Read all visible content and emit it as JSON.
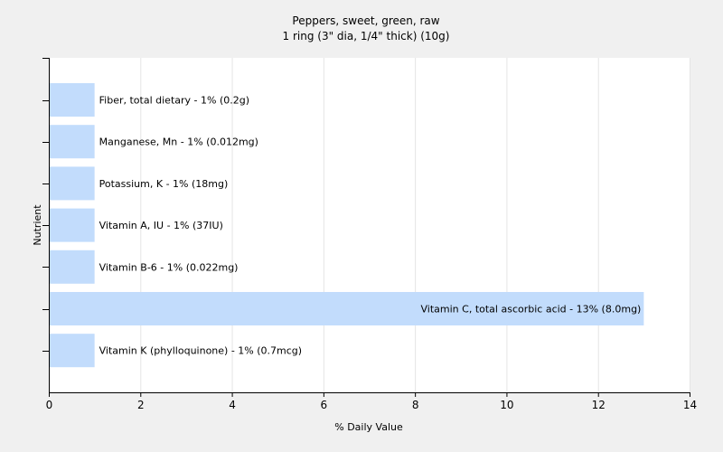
{
  "chart_data": {
    "type": "bar",
    "orientation": "horizontal",
    "title": "Peppers, sweet, green, raw",
    "subtitle": "1 ring (3\" dia, 1/4\" thick) (10g)",
    "xlabel": "% Daily Value",
    "ylabel": "Nutrient",
    "xlim": [
      0,
      14
    ],
    "xticks": [
      0,
      2,
      4,
      6,
      8,
      10,
      12,
      14
    ],
    "grid": true,
    "bar_color": "#c2dcfc",
    "background": "#f0f0f0",
    "plot_background": "#ffffff",
    "grid_color": "#e4e4e4",
    "categories": [
      "Fiber, total dietary",
      "Manganese, Mn",
      "Potassium, K",
      "Vitamin A, IU",
      "Vitamin B-6",
      "Vitamin C, total ascorbic acid",
      "Vitamin K (phylloquinone)"
    ],
    "values": [
      1,
      1,
      1,
      1,
      1,
      13,
      1
    ],
    "labels": [
      "Fiber, total dietary - 1% (0.2g)",
      "Manganese, Mn - 1% (0.012mg)",
      "Potassium, K - 1% (18mg)",
      "Vitamin A, IU - 1% (37IU)",
      "Vitamin B-6 - 1% (0.022mg)",
      "Vitamin C, total ascorbic acid - 13% (8.0mg)",
      "Vitamin K (phylloquinone) - 1% (0.7mcg)"
    ]
  }
}
